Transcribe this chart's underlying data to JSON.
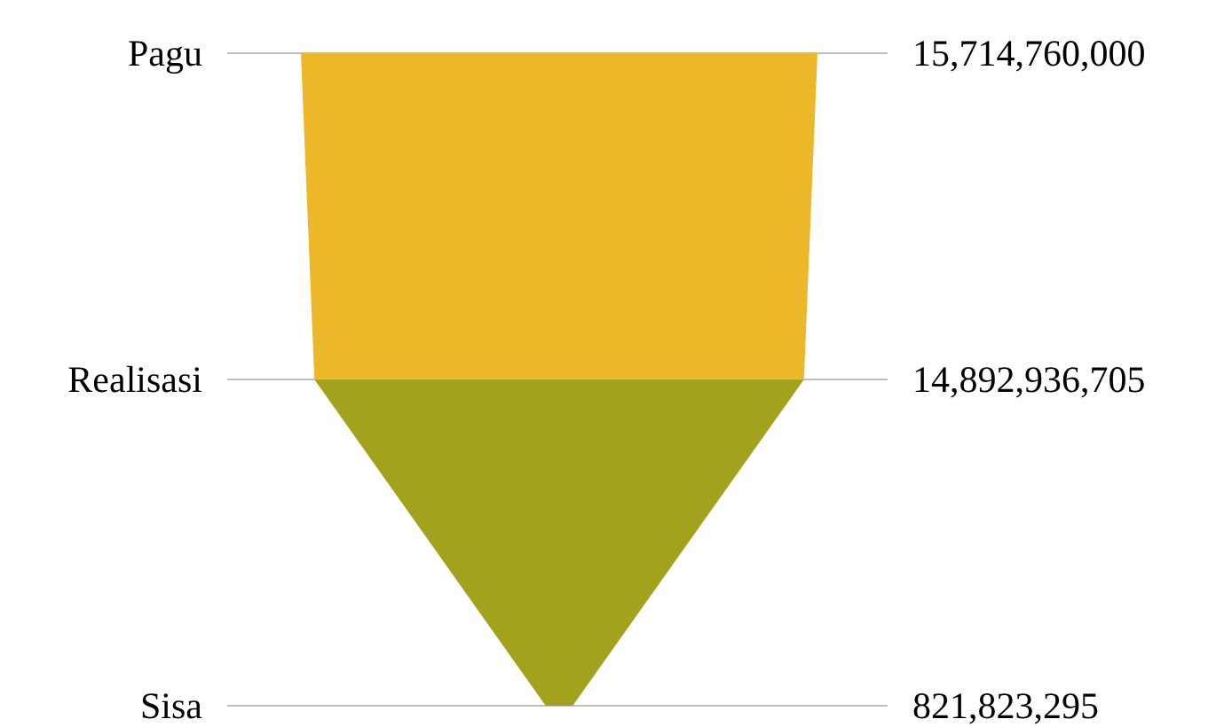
{
  "chart_data": {
    "type": "other",
    "categories": [
      "Pagu",
      "Realisasi",
      "Sisa"
    ],
    "values": [
      15714760000,
      14892936705,
      821823295
    ],
    "value_labels": [
      "15,714,760,000",
      "14,892,936,705",
      "821,823,295"
    ],
    "colors": [
      "#ecb82a",
      "#a3a21d",
      "#a3a21d"
    ]
  }
}
